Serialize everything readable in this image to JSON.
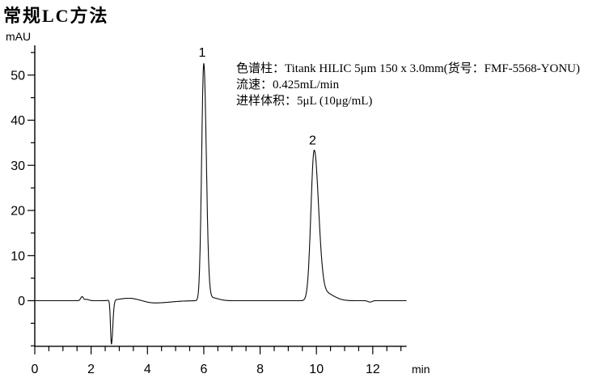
{
  "page": {
    "title": "常规LC方法"
  },
  "annotation": {
    "lines": [
      "色谱柱：Titank HILIC 5μm 150 x 3.0mm(货号：FMF-5568-YONU)",
      "流速：0.425mL/min",
      "进样体积：5μL (10μg/mL)"
    ]
  },
  "chart_data": {
    "type": "line",
    "title": "常规LC方法",
    "xlabel": "min",
    "ylabel": "mAU",
    "xlim": [
      0,
      13.2
    ],
    "ylim": [
      -10.1,
      56.6
    ],
    "x_major_ticks": [
      0,
      2,
      4,
      6,
      8,
      10,
      12
    ],
    "x_minor_tick_step": 0.5,
    "y_major_ticks": [
      0,
      10,
      20,
      30,
      40,
      50
    ],
    "y_minor_tick_step": 5,
    "grid": false,
    "legend": false,
    "baseline_mAU": 0,
    "trace_color": "#0a0a0a",
    "peaks": [
      {
        "label": "1",
        "retention_time_min": 6.0,
        "height_mAU": 52.5,
        "sigma_left_min": 0.075,
        "sigma_right_min": 0.09
      },
      {
        "label": "2",
        "retention_time_min": 9.92,
        "height_mAU": 33.0,
        "sigma_left_min": 0.115,
        "sigma_right_min": 0.155
      }
    ],
    "baseline_features": [
      {
        "name": "small-bump",
        "center_min": 1.68,
        "height_mAU": 0.9,
        "sigma_left_min": 0.05,
        "sigma_right_min": 0.045
      },
      {
        "name": "small-bump-2",
        "center_min": 1.83,
        "height_mAU": 0.3,
        "sigma_left_min": 0.06,
        "sigma_right_min": 0.09
      },
      {
        "name": "negative-spike",
        "center_min": 2.72,
        "height_mAU": -9.7,
        "sigma_left_min": 0.032,
        "sigma_right_min": 0.05
      },
      {
        "name": "broad-bump",
        "center_min": 3.35,
        "height_mAU": 0.55,
        "sigma_left_min": 0.35,
        "sigma_right_min": 0.3
      },
      {
        "name": "shallow-dip",
        "center_min": 4.25,
        "height_mAU": -0.5,
        "sigma_left_min": 0.3,
        "sigma_right_min": 0.55
      },
      {
        "name": "peak1-tail",
        "center_min": 6.25,
        "height_mAU": 0.7,
        "sigma_left_min": 0.12,
        "sigma_right_min": 0.25
      },
      {
        "name": "peak2-tail",
        "center_min": 10.28,
        "height_mAU": 1.8,
        "sigma_left_min": 0.2,
        "sigma_right_min": 0.32
      },
      {
        "name": "tiny-dip",
        "center_min": 11.9,
        "height_mAU": -0.3,
        "sigma_left_min": 0.07,
        "sigma_right_min": 0.07
      }
    ]
  }
}
